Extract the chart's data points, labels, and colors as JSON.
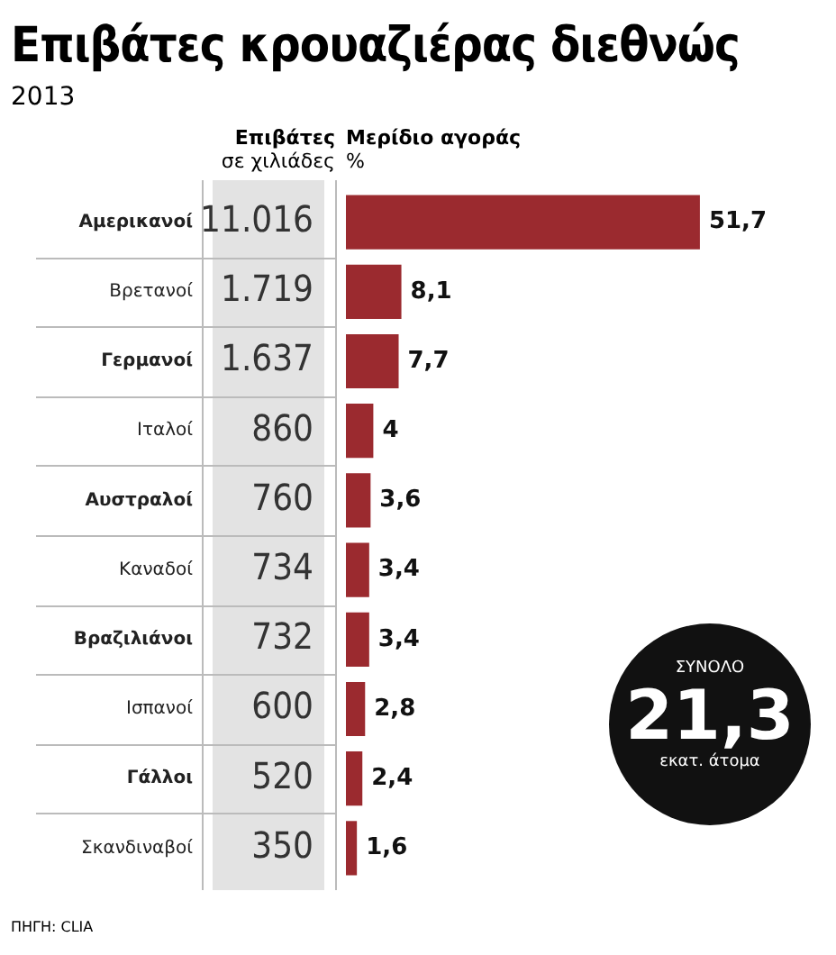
{
  "chart_data": {
    "type": "bar",
    "orientation": "horizontal",
    "title": "Επιβάτες κρουαζιέρας διεθνώς",
    "subtitle": "2013",
    "categories": [
      "Αμερικανοί",
      "Βρετανοί",
      "Γερμανοί",
      "Ιταλοί",
      "Αυστραλοί",
      "Καναδοί",
      "Βραζιλιάνοι",
      "Ισπανοί",
      "Γάλλοι",
      "Σκανδιναβοί"
    ],
    "values": [
      51.7,
      8.1,
      7.7,
      4,
      3.6,
      3.4,
      3.4,
      2.8,
      2.4,
      1.6
    ],
    "value_labels": [
      "51,7",
      "8,1",
      "7,7",
      "4",
      "3,6",
      "3,4",
      "3,4",
      "2,8",
      "2,4",
      "1,6"
    ],
    "color": "#9b2a2f",
    "tick_labels": "y",
    "legend": false,
    "annotations": [
      "Επιβάτες σε χιλιάδες",
      "Μερίδιο αγοράς %",
      "11.016",
      "1.719",
      "1.637",
      "860",
      "760",
      "734",
      "732",
      "600",
      "520",
      "350",
      "ΣΥΝΟΛΟ",
      "21,3",
      "εκατ. άτομα",
      "ΠΗΓΗ: CLIA"
    ]
  }
}
